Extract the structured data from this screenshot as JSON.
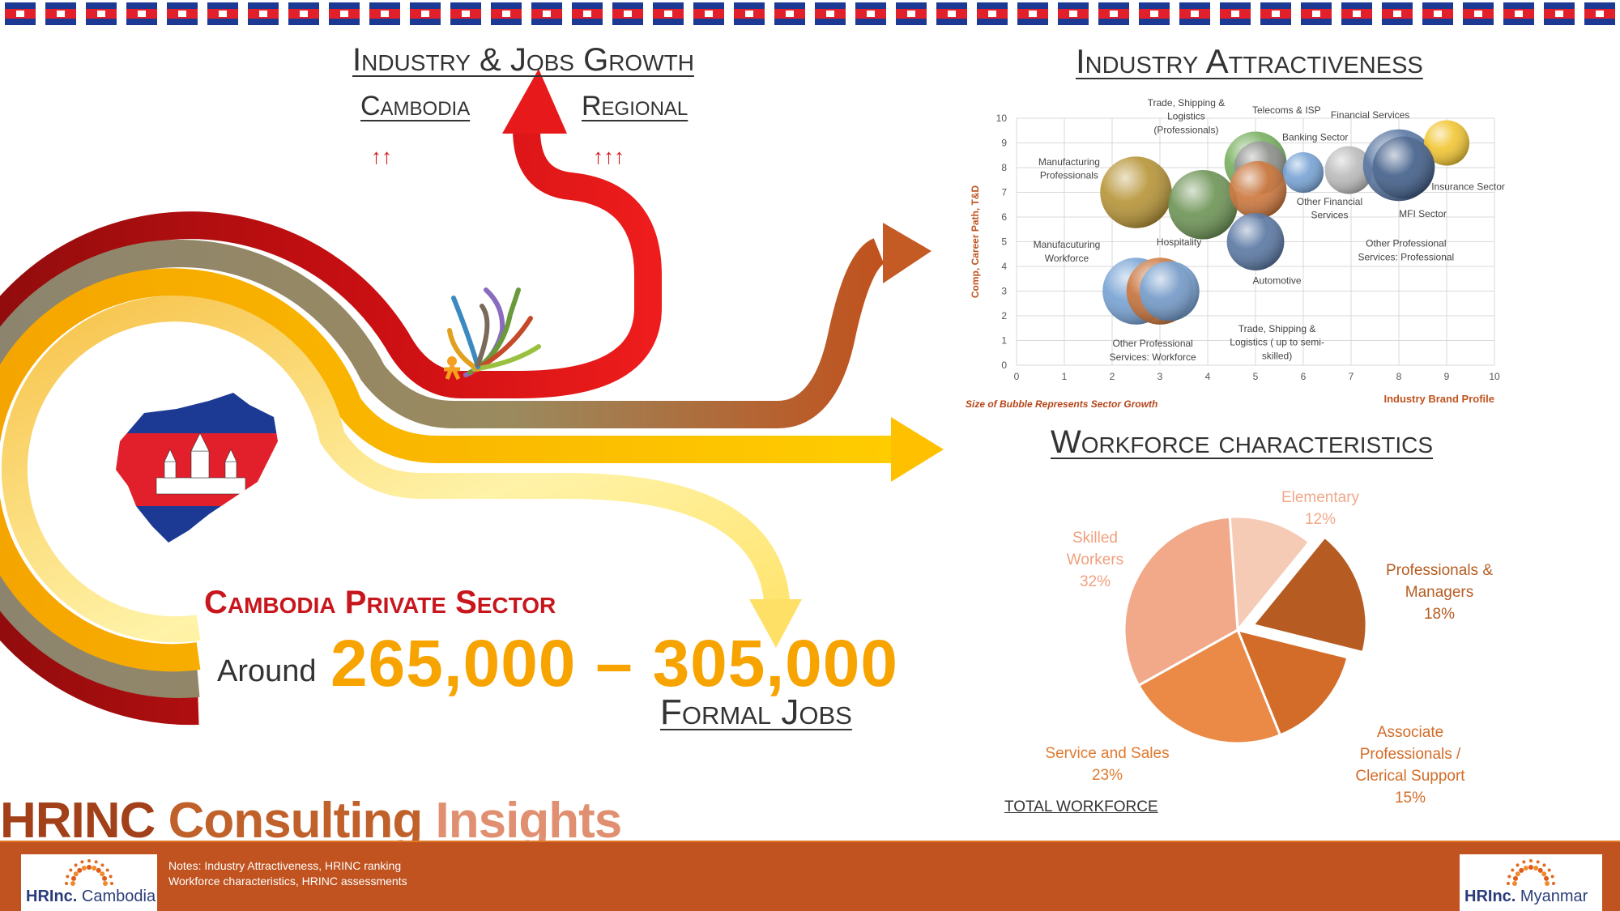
{
  "header": {
    "industry_jobs_growth_title": "Industry & Jobs Growth",
    "cambodia_label": "Cambodia",
    "regional_label": "Regional",
    "cambodia_growth": "↑↑",
    "regional_growth": "↑↑↑",
    "industry_attractiveness_title": "Industry Attractiveness",
    "workforce_title": "Workforce characteristics"
  },
  "sector": {
    "title": "Cambodia Private Sector",
    "around_label": "Around",
    "jobs_range": "265,000 – 305,000",
    "formal_jobs_label": "Formal Jobs"
  },
  "brand": {
    "insights_title": "HRINC Consulting Insights",
    "logo_left_main": "HRInc.",
    "logo_left_sub": "Cambodia",
    "logo_right_main": "HRInc.",
    "logo_right_sub": "Myanmar",
    "colors": {
      "footer": "#c0531f",
      "accent_red": "#c8161d",
      "accent_orange": "#f7a300"
    }
  },
  "footer": {
    "note1": "Notes:  Industry Attractiveness, HRINC ranking",
    "note2": "Workforce characteristics, HRINC assessments"
  },
  "chart_data": [
    {
      "type": "scatter",
      "subtype": "bubble",
      "title": "Industry Attractiveness",
      "xlabel": "Industry Brand Profile",
      "ylabel": "Comp, Career Path, T&D",
      "xlim": [
        0,
        10
      ],
      "ylim": [
        0,
        10
      ],
      "xticks": [
        0,
        1,
        2,
        3,
        4,
        5,
        6,
        7,
        8,
        9,
        10
      ],
      "yticks": [
        0,
        1,
        2,
        3,
        4,
        5,
        6,
        7,
        8,
        9,
        10
      ],
      "grid": true,
      "note": "Size of Bubble Represents Sector Growth",
      "points": [
        {
          "label": "Manufacturing Professionals",
          "x": 2.5,
          "y": 7.0,
          "size": 1.5,
          "color": "#b08a24"
        },
        {
          "label": "Manufacuturing Workforce",
          "x": 3.9,
          "y": 6.5,
          "size": 1.45,
          "color": "#5f8a45"
        },
        {
          "label": "Telecoms & ISP",
          "x": 5.0,
          "y": 8.2,
          "size": 1.3,
          "color": "#6aa84f"
        },
        {
          "label": "Trade, Shipping & Logistics (Professionals)",
          "x": 5.1,
          "y": 8.0,
          "size": 1.1,
          "color": "#8a8a8a"
        },
        {
          "label": "Hospitality",
          "x": 5.05,
          "y": 7.1,
          "size": 1.2,
          "color": "#c96a2a"
        },
        {
          "label": "Automotive",
          "x": 5.0,
          "y": 5.0,
          "size": 1.2,
          "color": "#4a6a9a"
        },
        {
          "label": "Banking Sector",
          "x": 6.0,
          "y": 7.8,
          "size": 0.85,
          "color": "#6a9ad0"
        },
        {
          "label": "Financial Services",
          "x": 6.95,
          "y": 7.9,
          "size": 1.0,
          "color": "#b5b5b5"
        },
        {
          "label": "Other Professional Services: Professional",
          "x": 8.0,
          "y": 8.1,
          "size": 1.5,
          "color": "#4a6a9a"
        },
        {
          "label": "Insurance Sector",
          "x": 9.0,
          "y": 9.0,
          "size": 0.95,
          "color": "#f0c020"
        },
        {
          "label": "Other Professional Services: Workforce",
          "x": 2.5,
          "y": 3.0,
          "size": 1.4,
          "color": "#6a9ad0"
        },
        {
          "label": "Trade, Shipping & Logistics ( up to semi-skilled)",
          "x": 3.0,
          "y": 3.0,
          "size": 1.4,
          "color": "#c96a2a"
        },
        {
          "label": "Other Financial Services",
          "x": 3.2,
          "y": 3.0,
          "size": 1.25,
          "color": "#6a9ad0"
        },
        {
          "label": "MFI Sector",
          "x": 8.1,
          "y": 8.0,
          "size": 1.3,
          "color": "#3d5a85"
        }
      ],
      "labels": [
        {
          "text": "Trade, Shipping &",
          "x": 3.55,
          "y": 10.5
        },
        {
          "text": "Logistics",
          "x": 3.55,
          "y": 9.95
        },
        {
          "text": "(Professionals)",
          "x": 3.55,
          "y": 9.4
        },
        {
          "text": "Telecoms & ISP",
          "x": 5.65,
          "y": 10.2
        },
        {
          "text": "Financial Services",
          "x": 7.4,
          "y": 10.0
        },
        {
          "text": "Banking Sector",
          "x": 6.25,
          "y": 9.1
        },
        {
          "text": "Manufacturing",
          "x": 1.1,
          "y": 8.1
        },
        {
          "text": "Professionals",
          "x": 1.1,
          "y": 7.55
        },
        {
          "text": "Other Financial",
          "x": 6.55,
          "y": 6.5
        },
        {
          "text": "Services",
          "x": 6.55,
          "y": 5.95
        },
        {
          "text": "Insurance Sector",
          "x": 9.45,
          "y": 7.1
        },
        {
          "text": "MFI Sector",
          "x": 8.5,
          "y": 6.0
        },
        {
          "text": "Other Professional",
          "x": 8.15,
          "y": 4.8
        },
        {
          "text": "Services: Professional",
          "x": 8.15,
          "y": 4.25
        },
        {
          "text": "Manufacuturing",
          "x": 1.05,
          "y": 4.75
        },
        {
          "text": "Workforce",
          "x": 1.05,
          "y": 4.2
        },
        {
          "text": "Hospitality",
          "x": 3.4,
          "y": 4.85
        },
        {
          "text": "Automotive",
          "x": 5.45,
          "y": 3.3
        },
        {
          "text": "Trade, Shipping &",
          "x": 5.45,
          "y": 1.35
        },
        {
          "text": "Logistics ( up to semi-",
          "x": 5.45,
          "y": 0.8
        },
        {
          "text": "skilled)",
          "x": 5.45,
          "y": 0.25
        },
        {
          "text": "Other Professional",
          "x": 2.85,
          "y": 0.75
        },
        {
          "text": "Services: Workforce",
          "x": 2.85,
          "y": 0.2
        }
      ]
    },
    {
      "type": "pie",
      "title": "Workforce characteristics",
      "footer_label": "TOTAL WORKFORCE",
      "slices": [
        {
          "label": "Elementary",
          "value": 12,
          "pct": "12%",
          "color": "#f6cbb6",
          "text_color": "#f0a98a"
        },
        {
          "label": "Professionals & Managers",
          "value": 18,
          "pct": "18%",
          "color": "#b65c22",
          "text_color": "#b65c22",
          "exploded": true
        },
        {
          "label": "Associate Professionals / Clerical Support",
          "value": 15,
          "pct": "15%",
          "color": "#d36c28",
          "text_color": "#d36c28"
        },
        {
          "label": "Service and Sales",
          "value": 23,
          "pct": "23%",
          "color": "#ea8a46",
          "text_color": "#e07a30"
        },
        {
          "label": "Skilled Workers",
          "value": 32,
          "pct": "32%",
          "color": "#f1a98a",
          "text_color": "#f0a07e"
        }
      ]
    }
  ]
}
